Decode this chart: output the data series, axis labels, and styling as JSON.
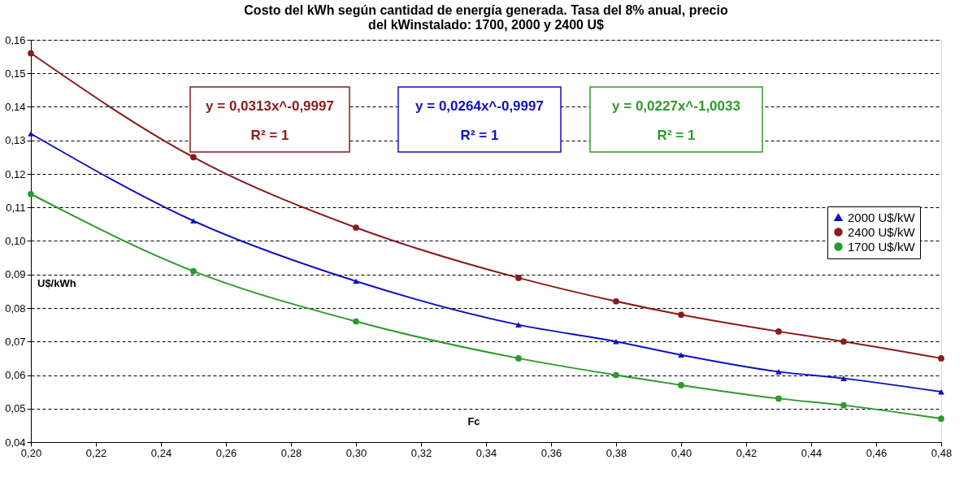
{
  "chart_data": {
    "type": "line",
    "title": [
      "Costo del kWh según cantidad de energía generada. Tasa del 8% anual, precio",
      "del kWinstalado: 1700, 2000 y 2400 U$"
    ],
    "xlabel": "Fc",
    "ylabel": "U$/kWh",
    "x": [
      0.2,
      0.25,
      0.3,
      0.35,
      0.38,
      0.4,
      0.43,
      0.45,
      0.48
    ],
    "series": [
      {
        "name": "2000 U$/kW",
        "color": "#1010c0",
        "marker": "triangle",
        "values": [
          0.132,
          0.106,
          0.088,
          0.075,
          0.07,
          0.066,
          0.061,
          0.059,
          0.055
        ]
      },
      {
        "name": "2400 U$/kW",
        "color": "#8b1a1a",
        "marker": "circle",
        "values": [
          0.156,
          0.125,
          0.104,
          0.089,
          0.082,
          0.078,
          0.073,
          0.07,
          0.065
        ]
      },
      {
        "name": "1700 U$/kW",
        "color": "#2e9a2e",
        "marker": "circle",
        "values": [
          0.114,
          0.091,
          0.076,
          0.065,
          0.06,
          0.057,
          0.053,
          0.051,
          0.047
        ]
      }
    ],
    "annotations": [
      "y = 0,0313x^-0,9997",
      "R² = 1",
      "y = 0,0264x^-0,9997",
      "R² = 1",
      "y = 0,0227x^-1,0033",
      "R² = 1"
    ],
    "xlim": [
      0.2,
      0.48
    ],
    "xticks": [
      {
        "value": 0.2,
        "label": "0,20"
      },
      {
        "value": 0.22,
        "label": "0,22"
      },
      {
        "value": 0.24,
        "label": "0,24"
      },
      {
        "value": 0.26,
        "label": "0,26"
      },
      {
        "value": 0.28,
        "label": "0,28"
      },
      {
        "value": 0.3,
        "label": "0,30"
      },
      {
        "value": 0.32,
        "label": "0,32"
      },
      {
        "value": 0.34,
        "label": "0,34"
      },
      {
        "value": 0.36,
        "label": "0,36"
      },
      {
        "value": 0.38,
        "label": "0,38"
      },
      {
        "value": 0.4,
        "label": "0,40"
      },
      {
        "value": 0.42,
        "label": "0,42"
      },
      {
        "value": 0.44,
        "label": "0,44"
      },
      {
        "value": 0.46,
        "label": "0,46"
      },
      {
        "value": 0.48,
        "label": "0,48"
      }
    ],
    "ylim": [
      0.04,
      0.16
    ],
    "yticks": [
      {
        "value": 0.04,
        "label": "0,04"
      },
      {
        "value": 0.05,
        "label": "0,05"
      },
      {
        "value": 0.06,
        "label": "0,06"
      },
      {
        "value": 0.07,
        "label": "0,07"
      },
      {
        "value": 0.08,
        "label": "0,08"
      },
      {
        "value": 0.09,
        "label": "0,09"
      },
      {
        "value": 0.1,
        "label": "0,10"
      },
      {
        "value": 0.11,
        "label": "0,11"
      },
      {
        "value": 0.12,
        "label": "0,12"
      },
      {
        "value": 0.13,
        "label": "0,13"
      },
      {
        "value": 0.14,
        "label": "0,14"
      },
      {
        "value": 0.15,
        "label": "0,15"
      },
      {
        "value": 0.16,
        "label": "0,16"
      }
    ],
    "grid": "y",
    "legend": "right",
    "line_style": "solid"
  }
}
